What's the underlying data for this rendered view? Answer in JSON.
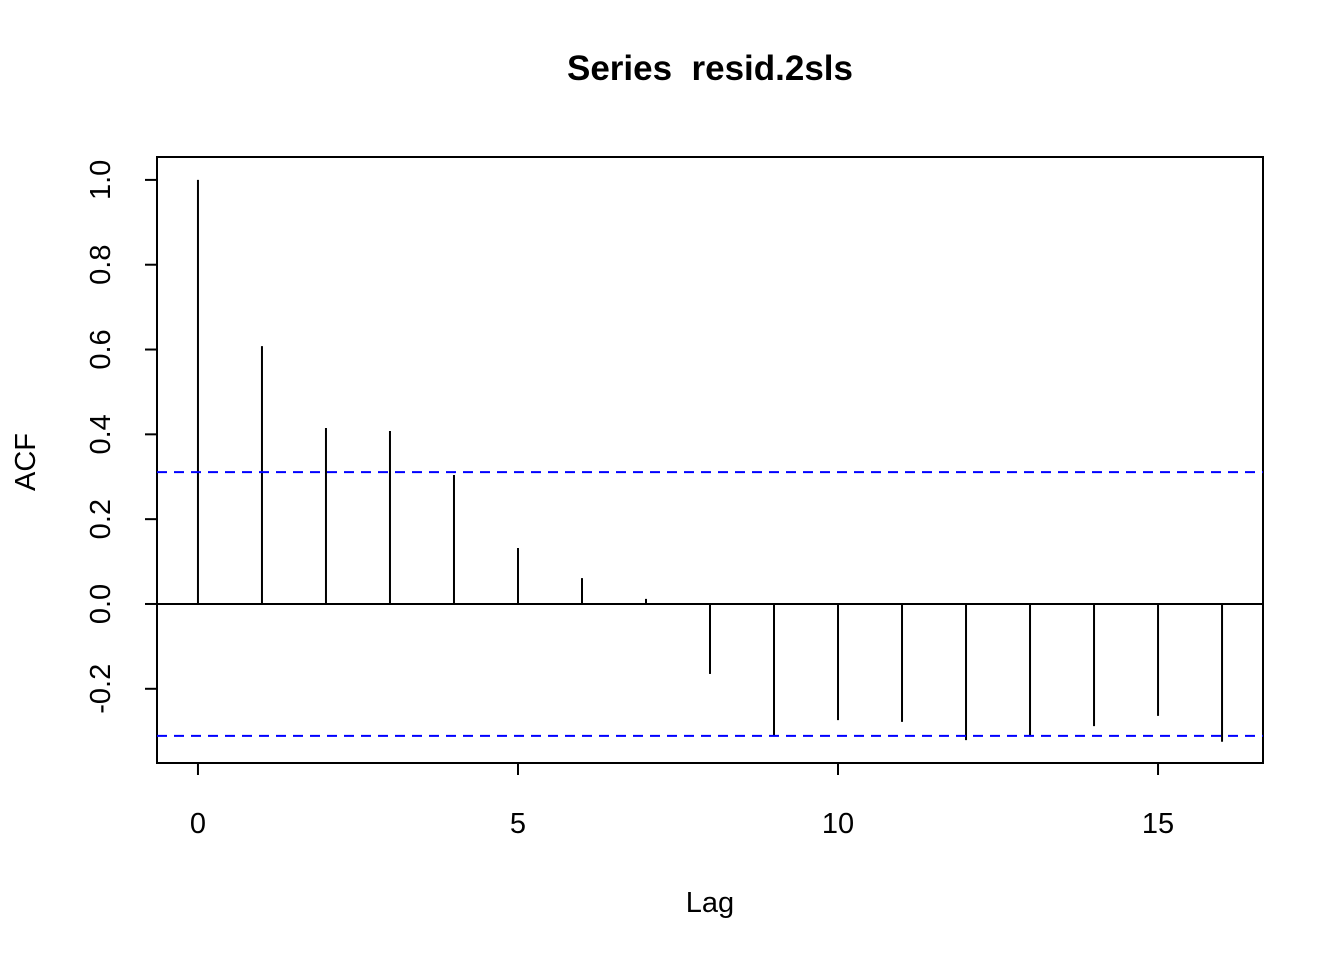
{
  "chart_data": {
    "type": "acf",
    "title": "Series  resid.2sls",
    "x_label": "Lag",
    "y_label": "ACF",
    "x": [
      0,
      1,
      2,
      3,
      4,
      5,
      6,
      7,
      8,
      9,
      10,
      11,
      12,
      13,
      14,
      15,
      16
    ],
    "values": [
      1.0,
      0.608,
      0.415,
      0.408,
      0.304,
      0.132,
      0.061,
      0.012,
      -0.165,
      -0.311,
      -0.274,
      -0.278,
      -0.321,
      -0.309,
      -0.288,
      -0.264,
      -0.325
    ],
    "color": "#000000",
    "confidence_limit": 0.311,
    "confidence_color": "#0000ff",
    "xlim": [
      -0.64,
      16.64
    ],
    "ylim": [
      -0.375,
      1.054
    ],
    "xticks": [
      0,
      5,
      10,
      15
    ],
    "yticks": [
      -0.2,
      {
        "value": 0,
        "label": "0.0"
      },
      0.2,
      0.4,
      0.6,
      0.8,
      {
        "value": 1,
        "label": "1.0"
      }
    ]
  }
}
